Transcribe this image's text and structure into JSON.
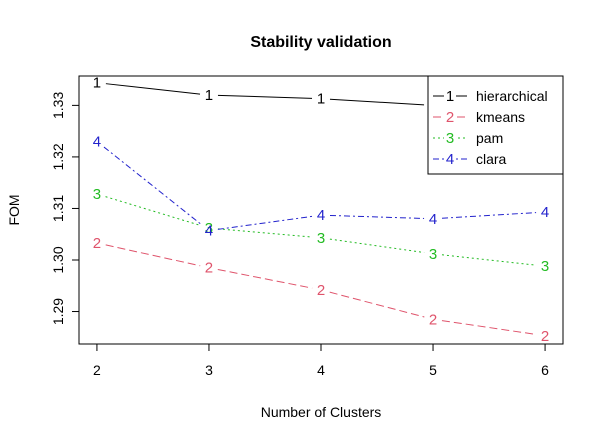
{
  "chart_data": {
    "type": "line",
    "title": "Stability validation",
    "xlabel": "Number of Clusters",
    "ylabel": "FOM",
    "x": [
      2,
      3,
      4,
      5,
      6
    ],
    "xticks": [
      "2",
      "3",
      "4",
      "5",
      "6"
    ],
    "yticks": [
      1.29,
      1.3,
      1.31,
      1.32,
      1.33
    ],
    "ytick_labels": [
      "1.29",
      "1.30",
      "1.31",
      "1.32",
      "1.33"
    ],
    "xlim": [
      1.84,
      6.16
    ],
    "ylim": [
      1.2837,
      1.3357
    ],
    "grid": false,
    "legend_position": "top-right",
    "series": [
      {
        "name": "hierarchical",
        "marker": "1",
        "color": "#000000",
        "dash": "",
        "values": [
          1.3344,
          1.332,
          1.3313,
          1.33,
          1.33
        ]
      },
      {
        "name": "kmeans",
        "marker": "2",
        "color": "#DF536B",
        "dash": "8,4",
        "values": [
          1.3033,
          1.2985,
          1.2942,
          1.2885,
          1.2853
        ]
      },
      {
        "name": "pam",
        "marker": "3",
        "color": "#22BB22",
        "dash": "2,3",
        "values": [
          1.3128,
          1.3062,
          1.3043,
          1.3012,
          1.2988
        ]
      },
      {
        "name": "clara",
        "marker": "4",
        "color": "#2222CC",
        "dash": "6,3,2,3",
        "values": [
          1.323,
          1.3057,
          1.3087,
          1.308,
          1.3093
        ]
      }
    ]
  }
}
